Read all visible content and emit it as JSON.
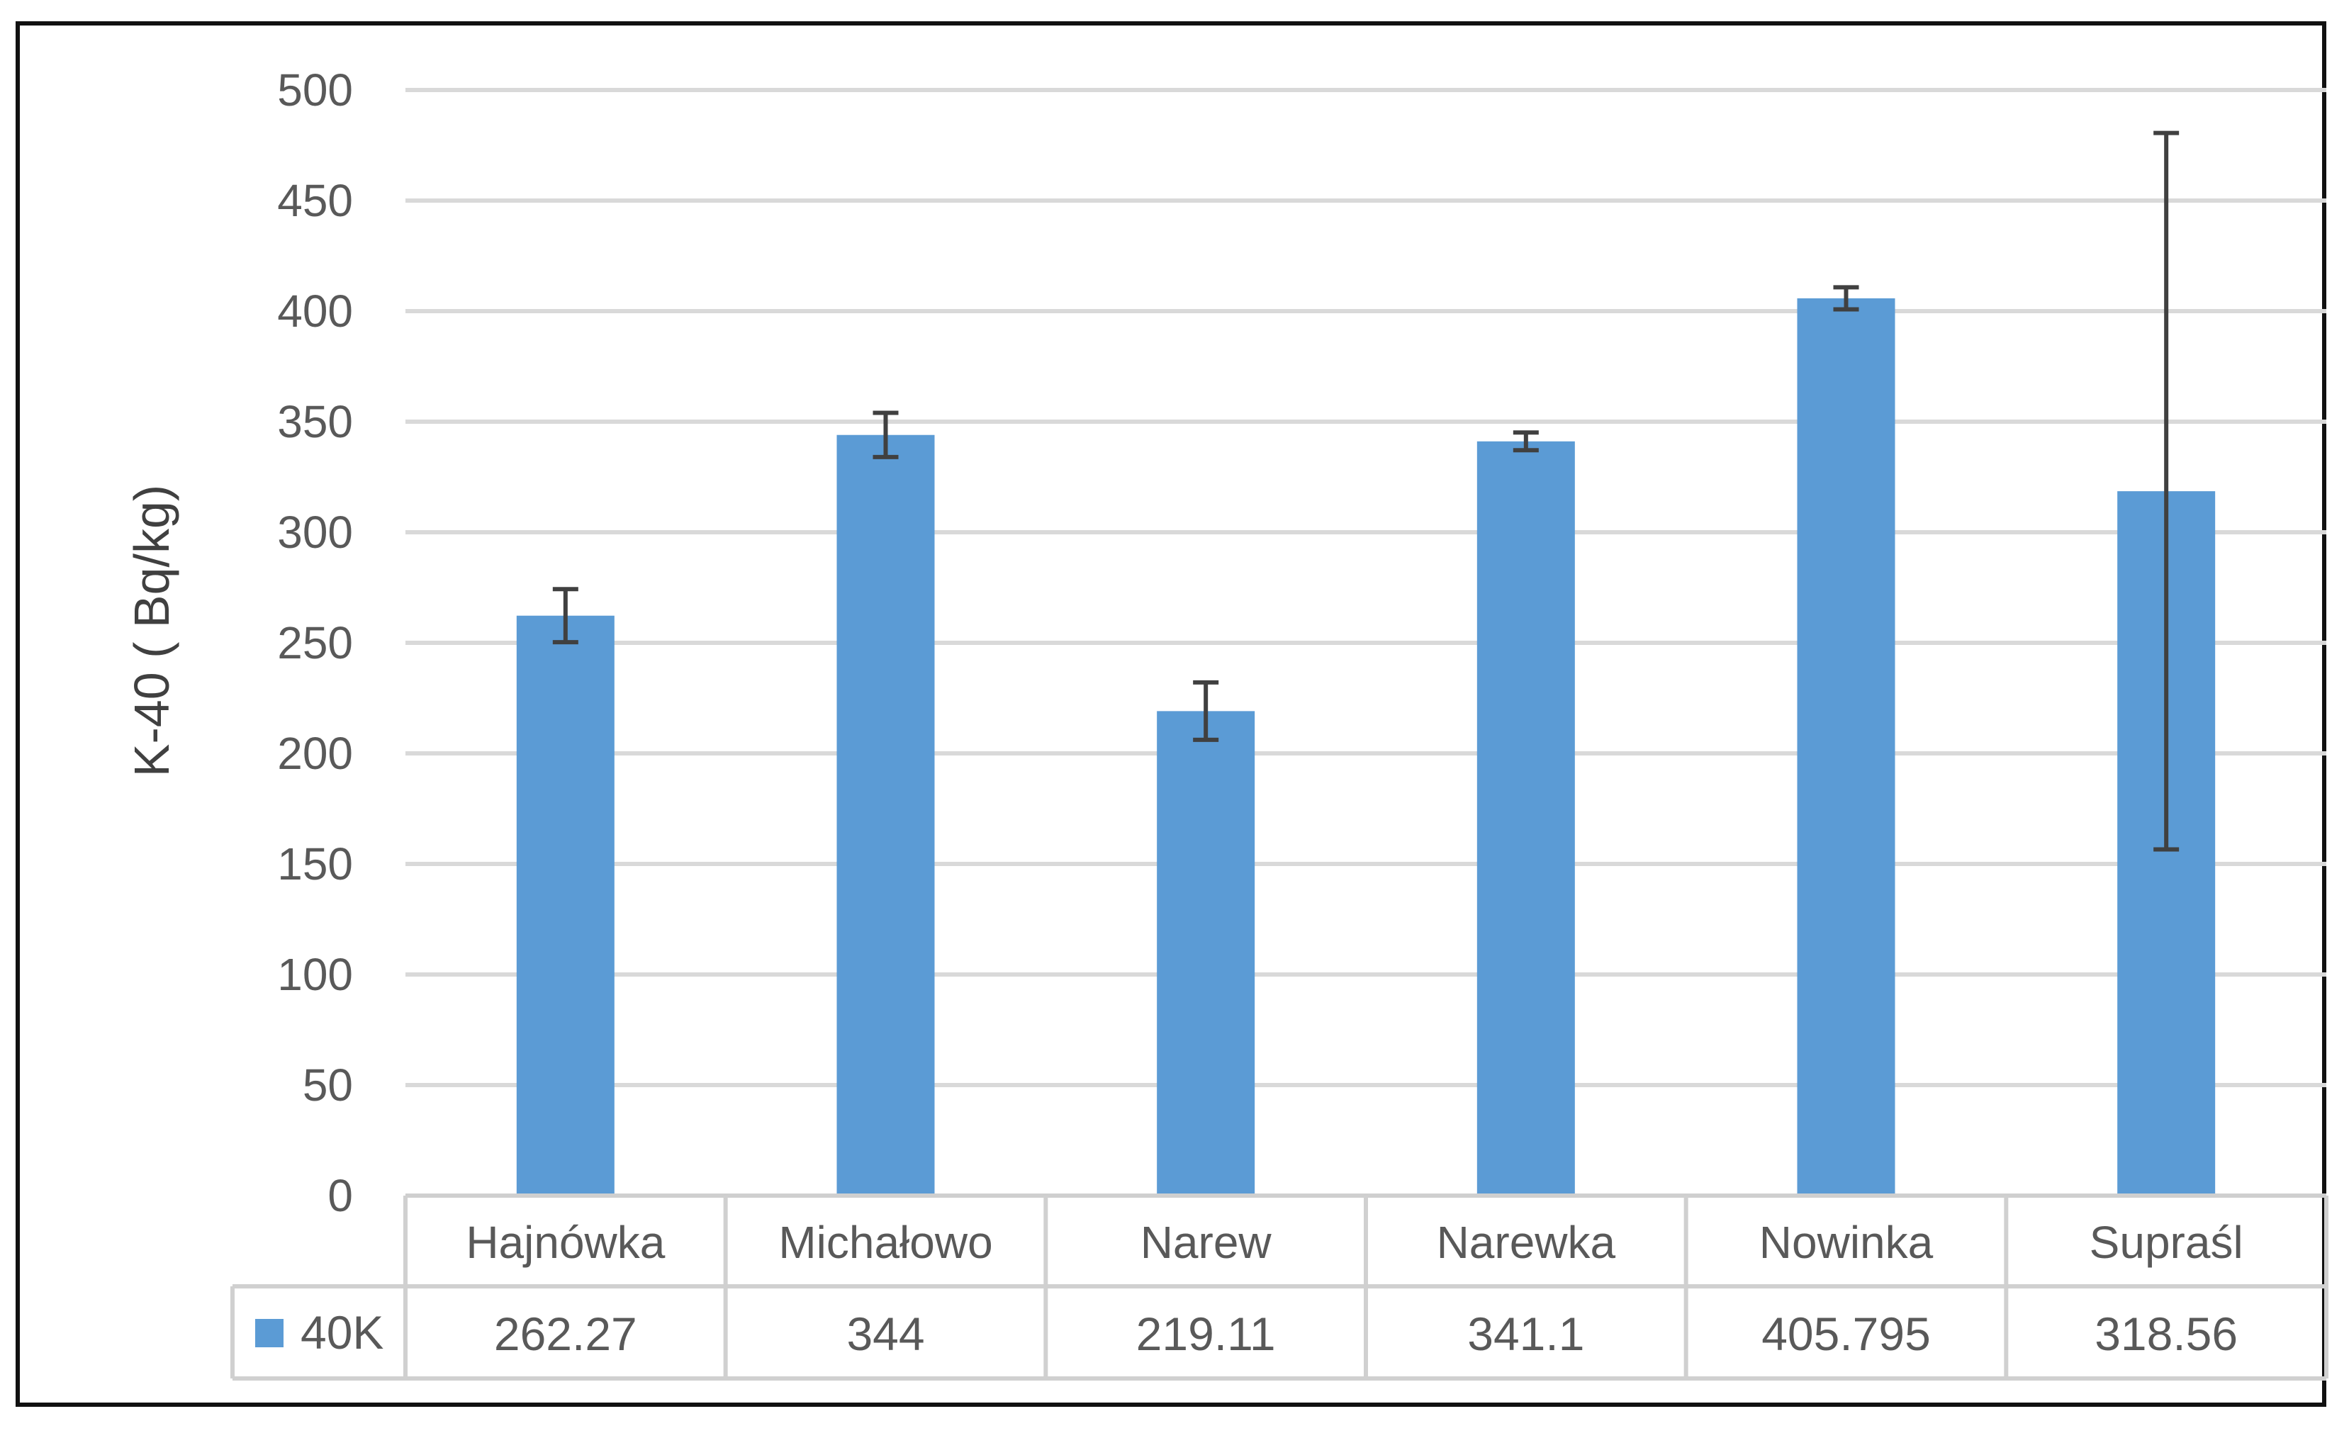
{
  "chart_data": {
    "type": "bar",
    "title": "",
    "xlabel": "",
    "ylabel": "K-40 ( Bq/kg)",
    "ylim": [
      0,
      500
    ],
    "yticks": [
      0,
      50,
      100,
      150,
      200,
      250,
      300,
      350,
      400,
      450,
      500
    ],
    "grid": true,
    "categories": [
      "Hajnówka",
      "Michałowo",
      "Narew",
      "Narewka",
      "Nowinka",
      "Supraśl"
    ],
    "series": [
      {
        "name": "40K",
        "color": "#5b9bd5",
        "values": [
          262.27,
          344,
          219.11,
          341.1,
          405.795,
          318.56
        ],
        "value_labels": [
          "262.27",
          "344",
          "219.11",
          "341.1",
          "405.795",
          "318.56"
        ],
        "error": [
          12,
          10,
          13,
          4,
          5,
          162
        ]
      }
    ],
    "data_table": true
  }
}
